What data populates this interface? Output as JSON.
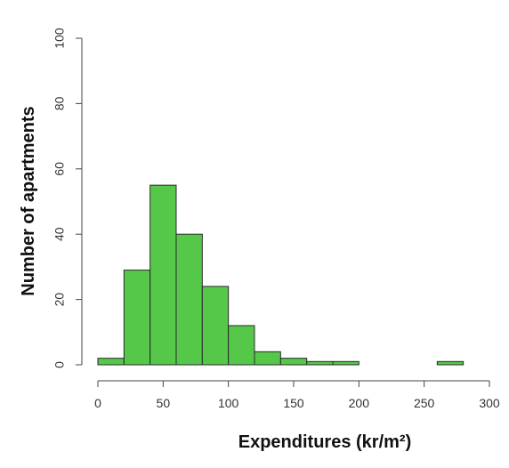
{
  "chart_data": {
    "type": "bar",
    "subtype": "histogram",
    "xlabel": "Expenditures  (kr/m²)",
    "ylabel": "Number of apartments",
    "xlim": [
      0,
      300
    ],
    "ylim": [
      0,
      100
    ],
    "x_ticks": [
      "0",
      "50",
      "100",
      "150",
      "200",
      "250",
      "300"
    ],
    "y_ticks": [
      "0",
      "20",
      "40",
      "60",
      "80",
      "100"
    ],
    "bin_width": 20,
    "bins": [
      {
        "start": 0,
        "end": 20,
        "value": 2
      },
      {
        "start": 20,
        "end": 40,
        "value": 29
      },
      {
        "start": 40,
        "end": 60,
        "value": 55
      },
      {
        "start": 60,
        "end": 80,
        "value": 40
      },
      {
        "start": 80,
        "end": 100,
        "value": 24
      },
      {
        "start": 100,
        "end": 120,
        "value": 12
      },
      {
        "start": 120,
        "end": 140,
        "value": 4
      },
      {
        "start": 140,
        "end": 160,
        "value": 2
      },
      {
        "start": 160,
        "end": 180,
        "value": 1
      },
      {
        "start": 180,
        "end": 200,
        "value": 1
      },
      {
        "start": 260,
        "end": 280,
        "value": 1
      }
    ],
    "grid": false,
    "bar_color": "#55c84a",
    "bar_edge_color": "#2a2a2a"
  }
}
